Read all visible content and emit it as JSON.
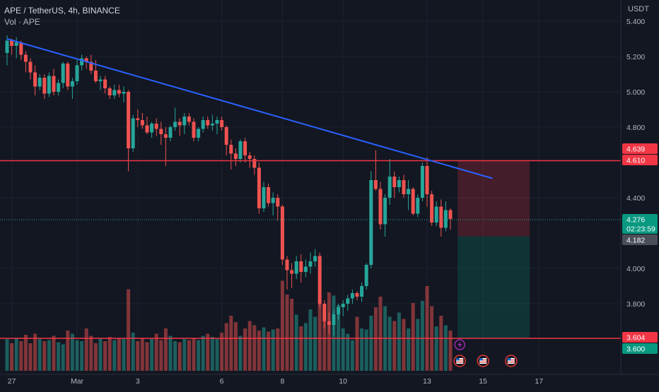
{
  "header": {
    "symbol_line": "APE / TetherUS, 4h, BINANCE",
    "volume_line": "Vol · APE",
    "currency": "USDT"
  },
  "colors": {
    "background": "#131722",
    "up": "#26a69a",
    "down": "#ef5350",
    "trendline": "#2962ff",
    "level": "#f23645"
  },
  "chart_data": {
    "type": "candlestick",
    "interval": "4h",
    "ylim": [
      3.52,
      5.44
    ],
    "y_ticks": [
      "5.400",
      "5.200",
      "5.000",
      "4.800",
      "4.400",
      "4.000",
      "3.800"
    ],
    "x_ticks": [
      "27",
      "Mar",
      "3",
      "6",
      "8",
      "10",
      "13",
      "15",
      "17"
    ],
    "ohlc": [
      [
        5.22,
        5.32,
        5.15,
        5.29
      ],
      [
        5.29,
        5.3,
        5.21,
        5.26
      ],
      [
        5.26,
        5.31,
        5.19,
        5.28
      ],
      [
        5.28,
        5.29,
        5.18,
        5.21
      ],
      [
        5.21,
        5.23,
        5.11,
        5.17
      ],
      [
        5.17,
        5.19,
        5.07,
        5.11
      ],
      [
        5.11,
        5.15,
        4.98,
        5.03
      ],
      [
        5.03,
        5.1,
        5.01,
        5.08
      ],
      [
        5.08,
        5.1,
        4.96,
        4.99
      ],
      [
        4.99,
        5.11,
        4.97,
        5.09
      ],
      [
        5.09,
        5.13,
        4.98,
        5.0
      ],
      [
        5.0,
        5.07,
        4.98,
        5.05
      ],
      [
        5.05,
        5.17,
        5.02,
        5.16
      ],
      [
        5.16,
        5.17,
        5.01,
        5.03
      ],
      [
        5.03,
        5.08,
        4.96,
        5.06
      ],
      [
        5.06,
        5.18,
        5.04,
        5.15
      ],
      [
        5.15,
        5.21,
        5.12,
        5.19
      ],
      [
        5.19,
        5.2,
        5.13,
        5.17
      ],
      [
        5.17,
        5.21,
        5.1,
        5.12
      ],
      [
        5.12,
        5.18,
        5.05,
        5.06
      ],
      [
        5.06,
        5.09,
        5.01,
        5.07
      ],
      [
        5.07,
        5.09,
        4.99,
        5.02
      ],
      [
        5.02,
        5.03,
        4.96,
        4.98
      ],
      [
        4.98,
        5.04,
        4.96,
        5.01
      ],
      [
        5.01,
        5.04,
        4.97,
        4.99
      ],
      [
        4.99,
        5.03,
        4.94,
        5.0
      ],
      [
        5.0,
        5.01,
        4.55,
        4.68
      ],
      [
        4.68,
        4.87,
        4.66,
        4.85
      ],
      [
        4.85,
        4.9,
        4.8,
        4.84
      ],
      [
        4.84,
        4.88,
        4.79,
        4.81
      ],
      [
        4.81,
        4.86,
        4.76,
        4.77
      ],
      [
        4.77,
        4.83,
        4.74,
        4.82
      ],
      [
        4.82,
        4.85,
        4.75,
        4.79
      ],
      [
        4.79,
        4.83,
        4.7,
        4.76
      ],
      [
        4.76,
        4.8,
        4.58,
        4.74
      ],
      [
        4.74,
        4.81,
        4.72,
        4.8
      ],
      [
        4.8,
        4.91,
        4.78,
        4.83
      ],
      [
        4.83,
        4.85,
        4.75,
        4.81
      ],
      [
        4.81,
        4.88,
        4.76,
        4.86
      ],
      [
        4.86,
        4.88,
        4.81,
        4.83
      ],
      [
        4.83,
        4.85,
        4.72,
        4.74
      ],
      [
        4.74,
        4.8,
        4.72,
        4.79
      ],
      [
        4.79,
        4.86,
        4.77,
        4.84
      ],
      [
        4.84,
        4.86,
        4.79,
        4.81
      ],
      [
        4.81,
        4.87,
        4.78,
        4.82
      ],
      [
        4.82,
        4.86,
        4.76,
        4.84
      ],
      [
        4.84,
        4.86,
        4.78,
        4.8
      ],
      [
        4.8,
        4.81,
        4.64,
        4.7
      ],
      [
        4.7,
        4.73,
        4.56,
        4.65
      ],
      [
        4.65,
        4.68,
        4.58,
        4.62
      ],
      [
        4.62,
        4.73,
        4.6,
        4.72
      ],
      [
        4.72,
        4.74,
        4.6,
        4.64
      ],
      [
        4.64,
        4.66,
        4.57,
        4.62
      ],
      [
        4.62,
        4.64,
        4.53,
        4.57
      ],
      [
        4.57,
        4.6,
        4.31,
        4.34
      ],
      [
        4.34,
        4.49,
        4.32,
        4.46
      ],
      [
        4.46,
        4.48,
        4.35,
        4.37
      ],
      [
        4.37,
        4.43,
        4.3,
        4.4
      ],
      [
        4.4,
        4.42,
        4.27,
        4.35
      ],
      [
        4.35,
        4.36,
        4.02,
        4.05
      ],
      [
        4.05,
        4.07,
        3.88,
        3.99
      ],
      [
        3.99,
        4.03,
        3.89,
        3.97
      ],
      [
        3.97,
        4.07,
        3.94,
        4.04
      ],
      [
        4.04,
        4.08,
        3.92,
        3.98
      ],
      [
        3.98,
        4.05,
        3.95,
        4.01
      ],
      [
        4.01,
        4.09,
        3.97,
        4.04
      ],
      [
        4.04,
        4.11,
        4.01,
        4.07
      ],
      [
        4.07,
        4.09,
        3.78,
        3.8
      ],
      [
        3.8,
        3.82,
        3.66,
        3.7
      ],
      [
        3.7,
        3.75,
        3.63,
        3.68
      ],
      [
        3.68,
        3.76,
        3.62,
        3.74
      ],
      [
        3.74,
        3.8,
        3.71,
        3.78
      ],
      [
        3.78,
        3.82,
        3.73,
        3.8
      ],
      [
        3.8,
        3.85,
        3.76,
        3.83
      ],
      [
        3.83,
        3.88,
        3.8,
        3.86
      ],
      [
        3.86,
        3.87,
        3.82,
        3.84
      ],
      [
        3.84,
        3.92,
        3.81,
        3.9
      ],
      [
        3.9,
        4.03,
        3.88,
        4.02
      ],
      [
        4.02,
        4.55,
        4.0,
        4.5
      ],
      [
        4.5,
        4.67,
        4.44,
        4.45
      ],
      [
        4.45,
        4.49,
        4.22,
        4.25
      ],
      [
        4.25,
        4.42,
        4.18,
        4.4
      ],
      [
        4.4,
        4.62,
        4.36,
        4.52
      ],
      [
        4.52,
        4.55,
        4.4,
        4.46
      ],
      [
        4.46,
        4.52,
        4.43,
        4.5
      ],
      [
        4.5,
        4.53,
        4.4,
        4.42
      ],
      [
        4.42,
        4.5,
        4.33,
        4.45
      ],
      [
        4.45,
        4.46,
        4.3,
        4.31
      ],
      [
        4.31,
        4.42,
        4.29,
        4.4
      ],
      [
        4.4,
        4.6,
        4.38,
        4.58
      ],
      [
        4.58,
        4.63,
        4.35,
        4.42
      ],
      [
        4.42,
        4.44,
        4.24,
        4.26
      ],
      [
        4.26,
        4.38,
        4.24,
        4.35
      ],
      [
        4.35,
        4.39,
        4.18,
        4.23
      ],
      [
        4.23,
        4.38,
        4.21,
        4.33
      ],
      [
        4.33,
        4.34,
        4.22,
        4.28
      ]
    ],
    "volume": [
      300,
      260,
      310,
      280,
      340,
      260,
      350,
      300,
      280,
      290,
      330,
      270,
      250,
      380,
      350,
      290,
      280,
      400,
      330,
      260,
      300,
      280,
      320,
      290,
      310,
      300,
      770,
      360,
      280,
      310,
      270,
      300,
      350,
      290,
      400,
      330,
      280,
      270,
      300,
      290,
      310,
      290,
      330,
      350,
      320,
      300,
      360,
      450,
      520,
      460,
      330,
      400,
      470,
      430,
      380,
      410,
      370,
      390,
      400,
      850,
      720,
      680,
      530,
      420,
      450,
      580,
      510,
      680,
      600,
      740,
      710,
      620,
      400,
      350,
      290,
      510,
      400,
      390,
      520,
      600,
      700,
      610,
      510,
      470,
      550,
      490,
      400,
      640,
      490,
      660,
      800,
      610,
      420,
      520,
      430,
      380
    ],
    "volume_scale_max": 1000,
    "trendline": {
      "start": [
        0,
        5.3
      ],
      "end": [
        104,
        4.51
      ]
    },
    "levels": [
      4.61,
      3.604
    ],
    "position": {
      "entry": 4.182,
      "stop": 4.61,
      "target": 3.604,
      "start_bar": 97,
      "end_bar": 112
    },
    "price_labels": [
      {
        "label": "4.639",
        "value": 4.639,
        "kind": "red"
      },
      {
        "label": "4.610",
        "value": 4.61,
        "kind": "red"
      },
      {
        "label": "4.276",
        "value": 4.276,
        "kind": "last"
      },
      {
        "label": "02:23:59",
        "value": 4.276,
        "kind": "last-sub"
      },
      {
        "label": "4.182",
        "value": 4.182,
        "kind": "gray"
      },
      {
        "label": "3.604",
        "value": 3.604,
        "kind": "red"
      },
      {
        "label": "3.600",
        "value": 3.6,
        "kind": "green"
      }
    ],
    "events": [
      {
        "icon": "lightning-icon",
        "bar": 97,
        "row": 0
      },
      {
        "icon": "us-flag-icon",
        "bar": 97,
        "row": 1
      },
      {
        "icon": "us-flag-icon",
        "bar": 102,
        "row": 1
      },
      {
        "icon": "us-flag-icon",
        "bar": 108,
        "row": 1
      }
    ]
  }
}
